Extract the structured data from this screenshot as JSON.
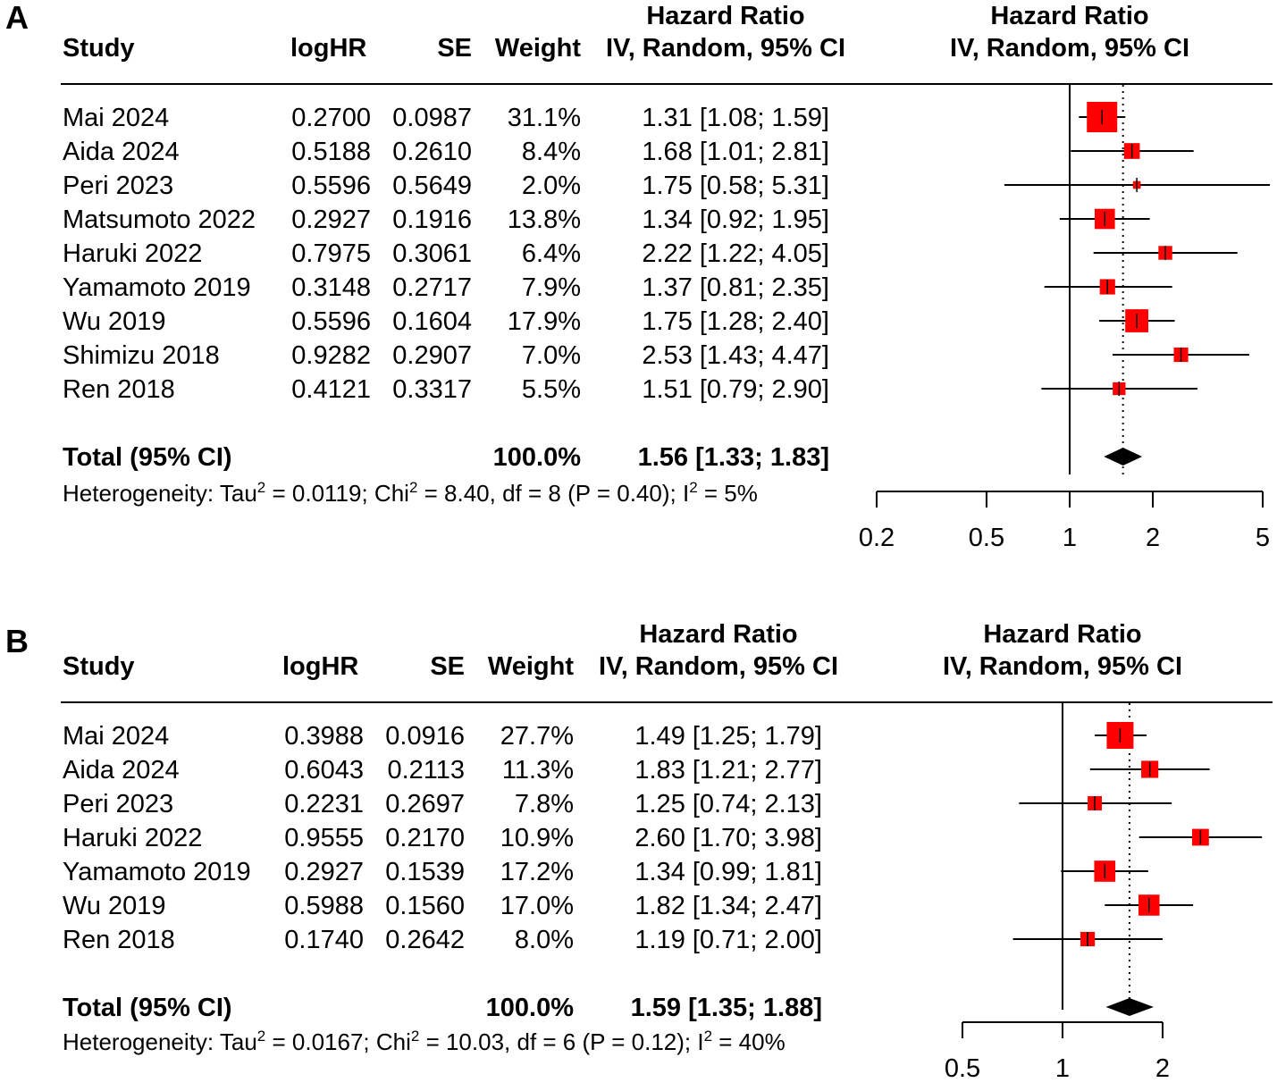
{
  "chart_data": [
    {
      "type": "forest",
      "panel_label": "A",
      "headers": {
        "study": "Study",
        "loghr": "logHR",
        "se": "SE",
        "weight": "Weight",
        "hr_line1": "Hazard Ratio",
        "hr_line2": "IV, Random, 95% CI",
        "plot_line1": "Hazard Ratio",
        "plot_line2": "IV, Random, 95% CI"
      },
      "studies": [
        {
          "study": "Mai 2024",
          "loghr": "0.2700",
          "se": "0.0987",
          "weight": "31.1%",
          "ci_text": "1.31 [1.08; 1.59]",
          "hr": 1.31,
          "lower": 1.08,
          "upper": 1.59,
          "w": 31.1
        },
        {
          "study": "Aida 2024",
          "loghr": "0.5188",
          "se": "0.2610",
          "weight": "8.4%",
          "ci_text": "1.68 [1.01; 2.81]",
          "hr": 1.68,
          "lower": 1.01,
          "upper": 2.81,
          "w": 8.4
        },
        {
          "study": "Peri 2023",
          "loghr": "0.5596",
          "se": "0.5649",
          "weight": "2.0%",
          "ci_text": "1.75 [0.58; 5.31]",
          "hr": 1.75,
          "lower": 0.58,
          "upper": 5.31,
          "w": 2.0
        },
        {
          "study": "Matsumoto 2022",
          "loghr": "0.2927",
          "se": "0.1916",
          "weight": "13.8%",
          "ci_text": "1.34 [0.92; 1.95]",
          "hr": 1.34,
          "lower": 0.92,
          "upper": 1.95,
          "w": 13.8
        },
        {
          "study": "Haruki 2022",
          "loghr": "0.7975",
          "se": "0.3061",
          "weight": "6.4%",
          "ci_text": "2.22 [1.22; 4.05]",
          "hr": 2.22,
          "lower": 1.22,
          "upper": 4.05,
          "w": 6.4
        },
        {
          "study": "Yamamoto 2019",
          "loghr": "0.3148",
          "se": "0.2717",
          "weight": "7.9%",
          "ci_text": "1.37 [0.81; 2.35]",
          "hr": 1.37,
          "lower": 0.81,
          "upper": 2.35,
          "w": 7.9
        },
        {
          "study": "Wu 2019",
          "loghr": "0.5596",
          "se": "0.1604",
          "weight": "17.9%",
          "ci_text": "1.75 [1.28; 2.40]",
          "hr": 1.75,
          "lower": 1.28,
          "upper": 2.4,
          "w": 17.9
        },
        {
          "study": "Shimizu 2018",
          "loghr": "0.9282",
          "se": "0.2907",
          "weight": "7.0%",
          "ci_text": "2.53 [1.43; 4.47]",
          "hr": 2.53,
          "lower": 1.43,
          "upper": 4.47,
          "w": 7.0
        },
        {
          "study": "Ren 2018",
          "loghr": "0.4121",
          "se": "0.3317",
          "weight": "5.5%",
          "ci_text": "1.51 [0.79; 2.90]",
          "hr": 1.51,
          "lower": 0.79,
          "upper": 2.9,
          "w": 5.5
        }
      ],
      "total": {
        "label": "Total (95% CI)",
        "weight": "100.0%",
        "ci_text": "1.56 [1.33; 1.83]",
        "hr": 1.56,
        "lower": 1.33,
        "upper": 1.83
      },
      "heterogeneity": {
        "prefix": "Heterogeneity: Tau",
        "sq1": "2",
        "tau2": " = 0.0119; Chi",
        "sq2": "2",
        "chi2": " = 8.40, df = 8 (P = 0.40); I",
        "sq3": "2",
        "i2": " = 5%"
      },
      "x_axis": {
        "scale": "log",
        "range": [
          0.2,
          5
        ],
        "ticks": [
          0.2,
          0.5,
          1,
          2,
          5
        ],
        "tick_labels": [
          "0.2",
          "0.5",
          "1",
          "2",
          "5"
        ],
        "reference_line": 1
      },
      "colors": {
        "box": "#ff0000",
        "line": "#000000"
      }
    },
    {
      "type": "forest",
      "panel_label": "B",
      "headers": {
        "study": "Study",
        "loghr": "logHR",
        "se": "SE",
        "weight": "Weight",
        "hr_line1": "Hazard Ratio",
        "hr_line2": "IV, Random, 95% CI",
        "plot_line1": "Hazard Ratio",
        "plot_line2": "IV, Random, 95% CI"
      },
      "studies": [
        {
          "study": "Mai 2024",
          "loghr": "0.3988",
          "se": "0.0916",
          "weight": "27.7%",
          "ci_text": "1.49 [1.25; 1.79]",
          "hr": 1.49,
          "lower": 1.25,
          "upper": 1.79,
          "w": 27.7
        },
        {
          "study": "Aida 2024",
          "loghr": "0.6043",
          "se": "0.2113",
          "weight": "11.3%",
          "ci_text": "1.83 [1.21; 2.77]",
          "hr": 1.83,
          "lower": 1.21,
          "upper": 2.77,
          "w": 11.3
        },
        {
          "study": "Peri 2023",
          "loghr": "0.2231",
          "se": "0.2697",
          "weight": "7.8%",
          "ci_text": "1.25 [0.74; 2.13]",
          "hr": 1.25,
          "lower": 0.74,
          "upper": 2.13,
          "w": 7.8
        },
        {
          "study": "Haruki 2022",
          "loghr": "0.9555",
          "se": "0.2170",
          "weight": "10.9%",
          "ci_text": "2.60 [1.70; 3.98]",
          "hr": 2.6,
          "lower": 1.7,
          "upper": 3.98,
          "w": 10.9
        },
        {
          "study": "Yamamoto 2019",
          "loghr": "0.2927",
          "se": "0.1539",
          "weight": "17.2%",
          "ci_text": "1.34 [0.99; 1.81]",
          "hr": 1.34,
          "lower": 0.99,
          "upper": 1.81,
          "w": 17.2
        },
        {
          "study": "Wu 2019",
          "loghr": "0.5988",
          "se": "0.1560",
          "weight": "17.0%",
          "ci_text": "1.82 [1.34; 2.47]",
          "hr": 1.82,
          "lower": 1.34,
          "upper": 2.47,
          "w": 17.0
        },
        {
          "study": "Ren 2018",
          "loghr": "0.1740",
          "se": "0.2642",
          "weight": "8.0%",
          "ci_text": "1.19 [0.71; 2.00]",
          "hr": 1.19,
          "lower": 0.71,
          "upper": 2.0,
          "w": 8.0
        }
      ],
      "total": {
        "label": "Total (95% CI)",
        "weight": "100.0%",
        "ci_text": "1.59 [1.35; 1.88]",
        "hr": 1.59,
        "lower": 1.35,
        "upper": 1.88
      },
      "heterogeneity": {
        "prefix": "Heterogeneity: Tau",
        "sq1": "2",
        "tau2": " = 0.0167; Chi",
        "sq2": "2",
        "chi2": " = 10.03, df = 6 (P = 0.12); I",
        "sq3": "2",
        "i2": " = 40%"
      },
      "x_axis": {
        "scale": "log",
        "range": [
          0.5,
          2
        ],
        "ticks": [
          0.5,
          1,
          2
        ],
        "tick_labels": [
          "0.5",
          "1",
          "2"
        ],
        "reference_line": 1
      },
      "colors": {
        "box": "#ff0000",
        "line": "#000000"
      }
    }
  ]
}
